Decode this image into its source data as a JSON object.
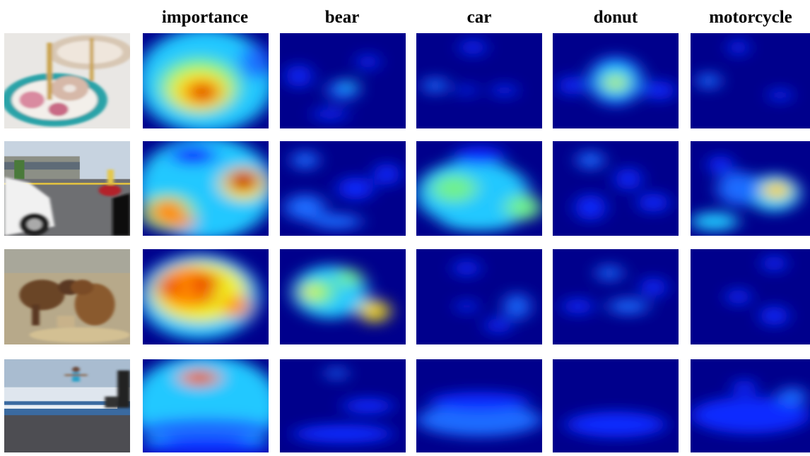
{
  "figure": {
    "columns": [
      "importance",
      "bear",
      "car",
      "donut",
      "motorcycle"
    ]
  }
}
